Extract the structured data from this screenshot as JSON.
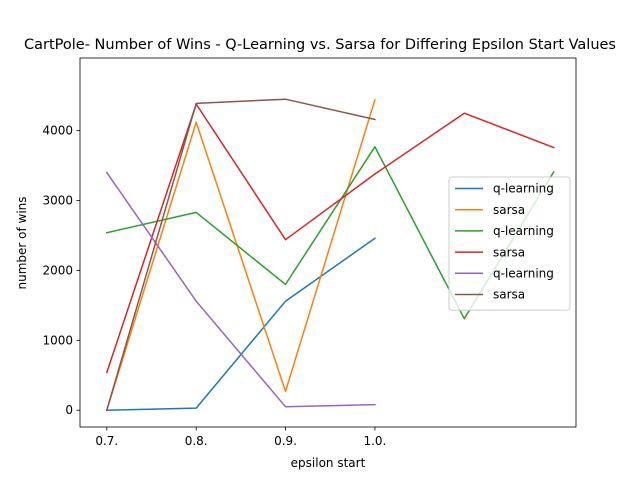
{
  "chart_data": {
    "type": "line",
    "title": "CartPole- Number of Wins - Q-Learning vs. Sarsa for Differing Epsilon Start Values",
    "xlabel": "epsilon start",
    "ylabel": "number of wins",
    "x_tick_labels": [
      "0.7.",
      "0.8.",
      "0.9.",
      "1.0."
    ],
    "x_tick_positions": [
      0,
      1,
      2,
      3
    ],
    "xlim": [
      -0.3,
      5.25
    ],
    "ylim": [
      -240,
      5040
    ],
    "y_ticks": [
      0,
      1000,
      2000,
      3000,
      4000
    ],
    "grid": false,
    "legend_position": "center-right",
    "series": [
      {
        "name": "q-learning",
        "color": "#1f77b4",
        "x": [
          0,
          1,
          2,
          3
        ],
        "y": [
          0,
          30,
          1560,
          2460
        ]
      },
      {
        "name": "sarsa",
        "color": "#ff7f0e",
        "x": [
          0,
          1,
          2,
          3
        ],
        "y": [
          0,
          4120,
          270,
          4440
        ]
      },
      {
        "name": "q-learning",
        "color": "#2ca02c",
        "x": [
          0,
          1,
          2,
          3,
          4,
          5
        ],
        "y": [
          2540,
          2830,
          1800,
          3770,
          1310,
          3410
        ]
      },
      {
        "name": "sarsa",
        "color": "#d62728",
        "x": [
          0,
          1,
          2,
          3,
          4,
          5
        ],
        "y": [
          540,
          4380,
          2440,
          3380,
          4250,
          3760
        ]
      },
      {
        "name": "q-learning",
        "color": "#9467bd",
        "x": [
          0,
          1,
          2,
          3
        ],
        "y": [
          3400,
          1560,
          50,
          80
        ]
      },
      {
        "name": "sarsa",
        "color": "#8c564b",
        "x": [
          0,
          1,
          2,
          3
        ],
        "y": [
          0,
          4390,
          4450,
          4160
        ]
      }
    ]
  }
}
